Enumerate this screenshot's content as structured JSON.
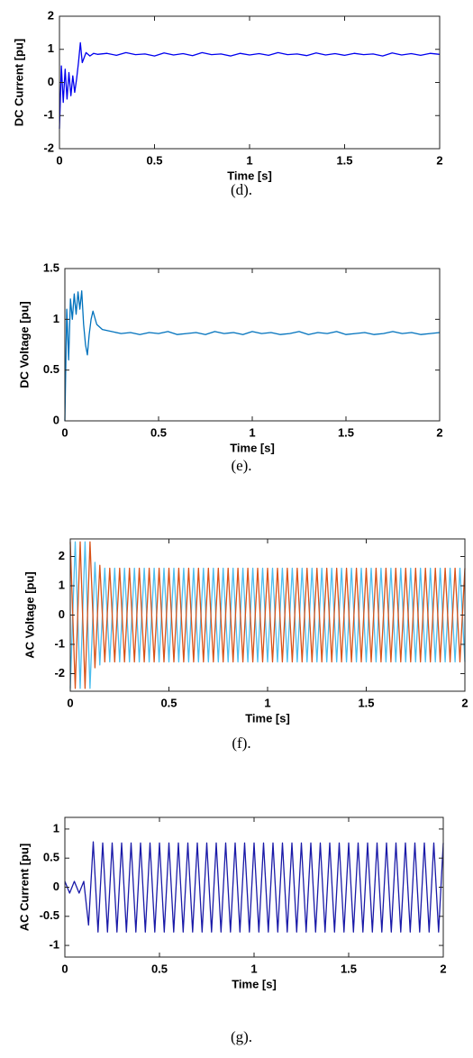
{
  "chart_data": [
    {
      "type": "line",
      "caption": "(d).",
      "xlabel": "Time [s]",
      "ylabel": "DC Current [pu]",
      "xlim": [
        0,
        2
      ],
      "xticks": [
        0,
        0.5,
        1,
        1.5,
        2
      ],
      "ylim": [
        -2,
        2
      ],
      "yticks": [
        -2,
        -1,
        0,
        1,
        2
      ],
      "x": [
        0,
        0.01,
        0.02,
        0.03,
        0.04,
        0.05,
        0.06,
        0.07,
        0.08,
        0.09,
        0.1,
        0.11,
        0.12,
        0.14,
        0.16,
        0.18,
        0.2,
        0.25,
        0.3,
        0.35,
        0.4,
        0.45,
        0.5,
        0.55,
        0.6,
        0.65,
        0.7,
        0.75,
        0.8,
        0.85,
        0.9,
        0.95,
        1,
        1.05,
        1.1,
        1.15,
        1.2,
        1.25,
        1.3,
        1.35,
        1.4,
        1.45,
        1.5,
        1.55,
        1.6,
        1.65,
        1.7,
        1.75,
        1.8,
        1.85,
        1.9,
        1.95,
        2
      ],
      "series": [
        {
          "color": "#0000ee",
          "values": [
            -1.4,
            0.5,
            -0.6,
            0.4,
            -0.5,
            0.3,
            -0.4,
            0.2,
            -0.3,
            0.1,
            0.6,
            1.2,
            0.6,
            0.9,
            0.8,
            0.88,
            0.85,
            0.88,
            0.82,
            0.9,
            0.84,
            0.86,
            0.8,
            0.89,
            0.83,
            0.87,
            0.81,
            0.9,
            0.84,
            0.86,
            0.8,
            0.88,
            0.83,
            0.87,
            0.82,
            0.9,
            0.84,
            0.86,
            0.81,
            0.89,
            0.83,
            0.87,
            0.82,
            0.88,
            0.84,
            0.86,
            0.8,
            0.89,
            0.83,
            0.87,
            0.82,
            0.88,
            0.85
          ]
        }
      ]
    },
    {
      "type": "line",
      "caption": "(e).",
      "xlabel": "Time [s]",
      "ylabel": "DC Voltage [pu]",
      "xlim": [
        0,
        2
      ],
      "xticks": [
        0,
        0.5,
        1,
        1.5,
        2
      ],
      "ylim": [
        0,
        1.5
      ],
      "yticks": [
        0,
        0.5,
        1,
        1.5
      ],
      "x": [
        0,
        0.01,
        0.02,
        0.03,
        0.04,
        0.05,
        0.06,
        0.07,
        0.08,
        0.09,
        0.1,
        0.11,
        0.12,
        0.13,
        0.14,
        0.15,
        0.17,
        0.2,
        0.25,
        0.3,
        0.35,
        0.4,
        0.45,
        0.5,
        0.55,
        0.6,
        0.65,
        0.7,
        0.75,
        0.8,
        0.85,
        0.9,
        0.95,
        1,
        1.05,
        1.1,
        1.15,
        1.2,
        1.25,
        1.3,
        1.35,
        1.4,
        1.45,
        1.5,
        1.55,
        1.6,
        1.65,
        1.7,
        1.75,
        1.8,
        1.85,
        1.9,
        1.95,
        2
      ],
      "series": [
        {
          "color": "#0072bd",
          "values": [
            0,
            1.1,
            0.6,
            1.2,
            1.0,
            1.25,
            1.05,
            1.27,
            1.1,
            1.28,
            0.95,
            0.75,
            0.65,
            0.85,
            1.0,
            1.08,
            0.95,
            0.9,
            0.88,
            0.86,
            0.87,
            0.85,
            0.87,
            0.86,
            0.88,
            0.85,
            0.86,
            0.87,
            0.85,
            0.88,
            0.86,
            0.87,
            0.85,
            0.88,
            0.86,
            0.87,
            0.85,
            0.86,
            0.88,
            0.85,
            0.87,
            0.86,
            0.88,
            0.85,
            0.86,
            0.87,
            0.85,
            0.86,
            0.88,
            0.86,
            0.87,
            0.85,
            0.86,
            0.87
          ]
        }
      ]
    },
    {
      "type": "line",
      "caption": "(f).",
      "xlabel": "Time [s]",
      "ylabel": "AC Voltage [pu]",
      "xlim": [
        0,
        2
      ],
      "xticks": [
        0,
        0.5,
        1,
        1.5,
        2
      ],
      "ylim": [
        -2.6,
        2.6
      ],
      "yticks": [
        -2,
        -1,
        0,
        1,
        2
      ],
      "x": [
        0,
        0.025,
        0.05,
        0.075,
        0.1,
        0.125,
        0.15,
        0.175,
        0.2,
        0.225,
        0.25,
        0.275,
        0.3,
        0.325,
        0.35,
        0.375,
        0.4,
        0.425,
        0.45,
        0.475,
        0.5,
        0.525,
        0.55,
        0.575,
        0.6,
        0.625,
        0.65,
        0.675,
        0.7,
        0.725,
        0.75,
        0.775,
        0.8,
        0.825,
        0.85,
        0.875,
        0.9,
        0.925,
        0.95,
        0.975,
        1,
        1.025,
        1.05,
        1.075,
        1.1,
        1.125,
        1.15,
        1.175,
        1.2,
        1.225,
        1.25,
        1.275,
        1.3,
        1.325,
        1.35,
        1.375,
        1.4,
        1.425,
        1.45,
        1.475,
        1.5,
        1.525,
        1.55,
        1.575,
        1.6,
        1.625,
        1.65,
        1.675,
        1.7,
        1.725,
        1.75,
        1.775,
        1.8,
        1.825,
        1.85,
        1.875,
        1.9,
        1.925,
        1.95,
        1.975,
        2
      ],
      "series": [
        {
          "color": "#4dbeee",
          "values": [
            -2.5,
            2.5,
            -2.5,
            2.5,
            -2.5,
            1.8,
            -1.7,
            1.6,
            -1.6,
            1.6,
            -1.6,
            1.6,
            -1.6,
            1.6,
            -1.6,
            1.6,
            -1.6,
            1.6,
            -1.6,
            1.6,
            -1.6,
            1.6,
            -1.6,
            1.6,
            -1.6,
            1.6,
            -1.6,
            1.6,
            -1.6,
            1.6,
            -1.6,
            1.6,
            -1.6,
            1.6,
            -1.6,
            1.6,
            -1.6,
            1.6,
            -1.6,
            1.6,
            -1.6,
            1.6,
            -1.6,
            1.6,
            -1.6,
            1.6,
            -1.6,
            1.6,
            -1.6,
            1.6,
            -1.6,
            1.6,
            -1.6,
            1.6,
            -1.6,
            1.6,
            -1.6,
            1.6,
            -1.6,
            1.6,
            -1.6,
            1.6,
            -1.6,
            1.6,
            -1.6,
            1.6,
            -1.6,
            1.6,
            -1.6,
            1.6,
            -1.6,
            1.6,
            -1.6,
            1.6,
            -1.6,
            1.6,
            -1.6,
            1.6,
            -1.6,
            1.6,
            -1.6
          ]
        },
        {
          "color": "#d95319",
          "values": [
            2.5,
            -2.5,
            2.5,
            -2.5,
            2.5,
            -1.8,
            1.7,
            -1.6,
            1.6,
            -1.6,
            1.6,
            -1.6,
            1.6,
            -1.6,
            1.6,
            -1.6,
            1.6,
            -1.6,
            1.6,
            -1.6,
            1.6,
            -1.6,
            1.6,
            -1.6,
            1.6,
            -1.6,
            1.6,
            -1.6,
            1.6,
            -1.6,
            1.6,
            -1.6,
            1.6,
            -1.6,
            1.6,
            -1.6,
            1.6,
            -1.6,
            1.6,
            -1.6,
            1.6,
            -1.6,
            1.6,
            -1.6,
            1.6,
            -1.6,
            1.6,
            -1.6,
            1.6,
            -1.6,
            1.6,
            -1.6,
            1.6,
            -1.6,
            1.6,
            -1.6,
            1.6,
            -1.6,
            1.6,
            -1.6,
            1.6,
            -1.6,
            1.6,
            -1.6,
            1.6,
            -1.6,
            1.6,
            -1.6,
            1.6,
            -1.6,
            1.6,
            -1.6,
            1.6,
            -1.6,
            1.6,
            -1.6,
            1.6,
            -1.6,
            1.6,
            -1.6,
            1.6
          ]
        }
      ]
    },
    {
      "type": "line",
      "caption": "(g).",
      "xlabel": "Time [s]",
      "ylabel": "AC Current [pu]",
      "xlim": [
        0,
        2
      ],
      "xticks": [
        0,
        0.5,
        1,
        1.5,
        2
      ],
      "ylim": [
        -1.2,
        1.2
      ],
      "yticks": [
        -1,
        -0.5,
        0,
        0.5,
        1
      ],
      "x": [
        0,
        0.025,
        0.05,
        0.075,
        0.1,
        0.125,
        0.15,
        0.175,
        0.2,
        0.225,
        0.25,
        0.275,
        0.3,
        0.325,
        0.35,
        0.375,
        0.4,
        0.425,
        0.45,
        0.475,
        0.5,
        0.525,
        0.55,
        0.575,
        0.6,
        0.625,
        0.65,
        0.675,
        0.7,
        0.725,
        0.75,
        0.775,
        0.8,
        0.825,
        0.85,
        0.875,
        0.9,
        0.925,
        0.95,
        0.975,
        1,
        1.025,
        1.05,
        1.075,
        1.1,
        1.125,
        1.15,
        1.175,
        1.2,
        1.225,
        1.25,
        1.275,
        1.3,
        1.325,
        1.35,
        1.375,
        1.4,
        1.425,
        1.45,
        1.475,
        1.5,
        1.525,
        1.55,
        1.575,
        1.6,
        1.625,
        1.65,
        1.675,
        1.7,
        1.725,
        1.75,
        1.775,
        1.8,
        1.825,
        1.85,
        1.875,
        1.9,
        1.925,
        1.95,
        1.975,
        2
      ],
      "series": [
        {
          "color": "#1a1aa8",
          "values": [
            0.1,
            -0.1,
            0.1,
            -0.1,
            0.1,
            -0.65,
            0.78,
            -0.77,
            0.76,
            -0.77,
            0.76,
            -0.77,
            0.76,
            -0.77,
            0.76,
            -0.77,
            0.76,
            -0.77,
            0.76,
            -0.77,
            0.76,
            -0.77,
            0.76,
            -0.77,
            0.76,
            -0.77,
            0.76,
            -0.77,
            0.76,
            -0.77,
            0.76,
            -0.77,
            0.76,
            -0.77,
            0.76,
            -0.77,
            0.76,
            -0.77,
            0.76,
            -0.77,
            0.76,
            -0.77,
            0.76,
            -0.77,
            0.76,
            -0.77,
            0.76,
            -0.77,
            0.76,
            -0.77,
            0.76,
            -0.77,
            0.76,
            -0.77,
            0.76,
            -0.77,
            0.76,
            -0.77,
            0.76,
            -0.77,
            0.76,
            -0.77,
            0.76,
            -0.77,
            0.76,
            -0.77,
            0.76,
            -0.77,
            0.76,
            -0.77,
            0.76,
            -0.77,
            0.76,
            -0.77,
            0.76,
            -0.77,
            0.76,
            -0.77,
            0.76,
            -0.77,
            0.76
          ]
        }
      ]
    }
  ]
}
